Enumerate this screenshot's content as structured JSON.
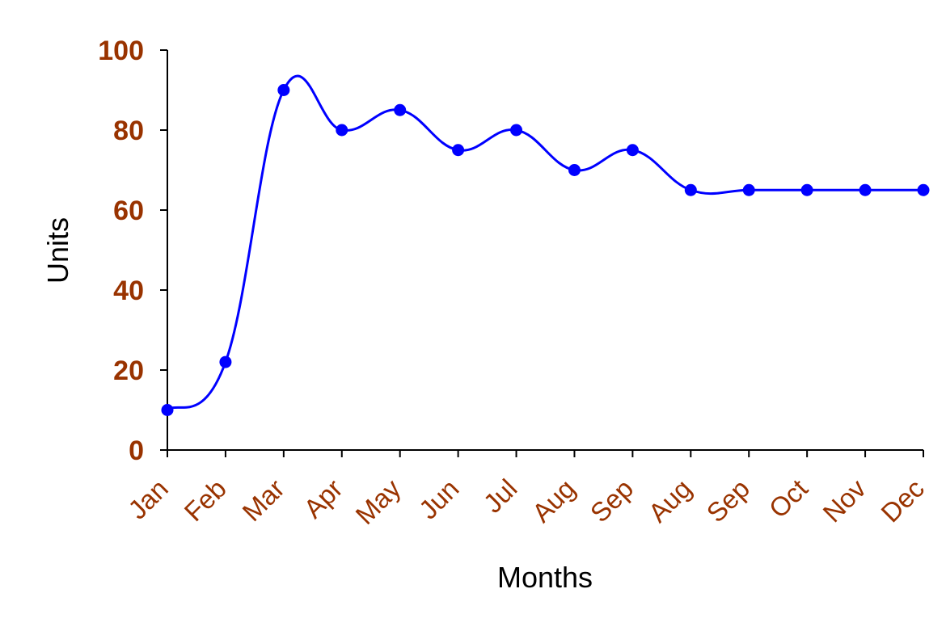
{
  "chart_data": {
    "type": "line",
    "title": "",
    "xlabel": "Months",
    "ylabel": "Units",
    "categories": [
      "Jan",
      "Feb",
      "Mar",
      "Apr",
      "May",
      "Jun",
      "Jul",
      "Aug",
      "Sep",
      "Aug",
      "Sep",
      "Oct",
      "Nov",
      "Dec"
    ],
    "series": [
      {
        "values": [
          10,
          22,
          90,
          80,
          85,
          75,
          80,
          70,
          75,
          65,
          65,
          65,
          65,
          65
        ]
      }
    ],
    "ylim": [
      0,
      100
    ],
    "yticks": [
      0,
      20,
      40,
      60,
      80,
      100
    ],
    "grid": false,
    "smoothed": true,
    "markers": "circle",
    "colors": {
      "line": "#0000ff",
      "text": "#993300",
      "axis": "#000000"
    }
  }
}
